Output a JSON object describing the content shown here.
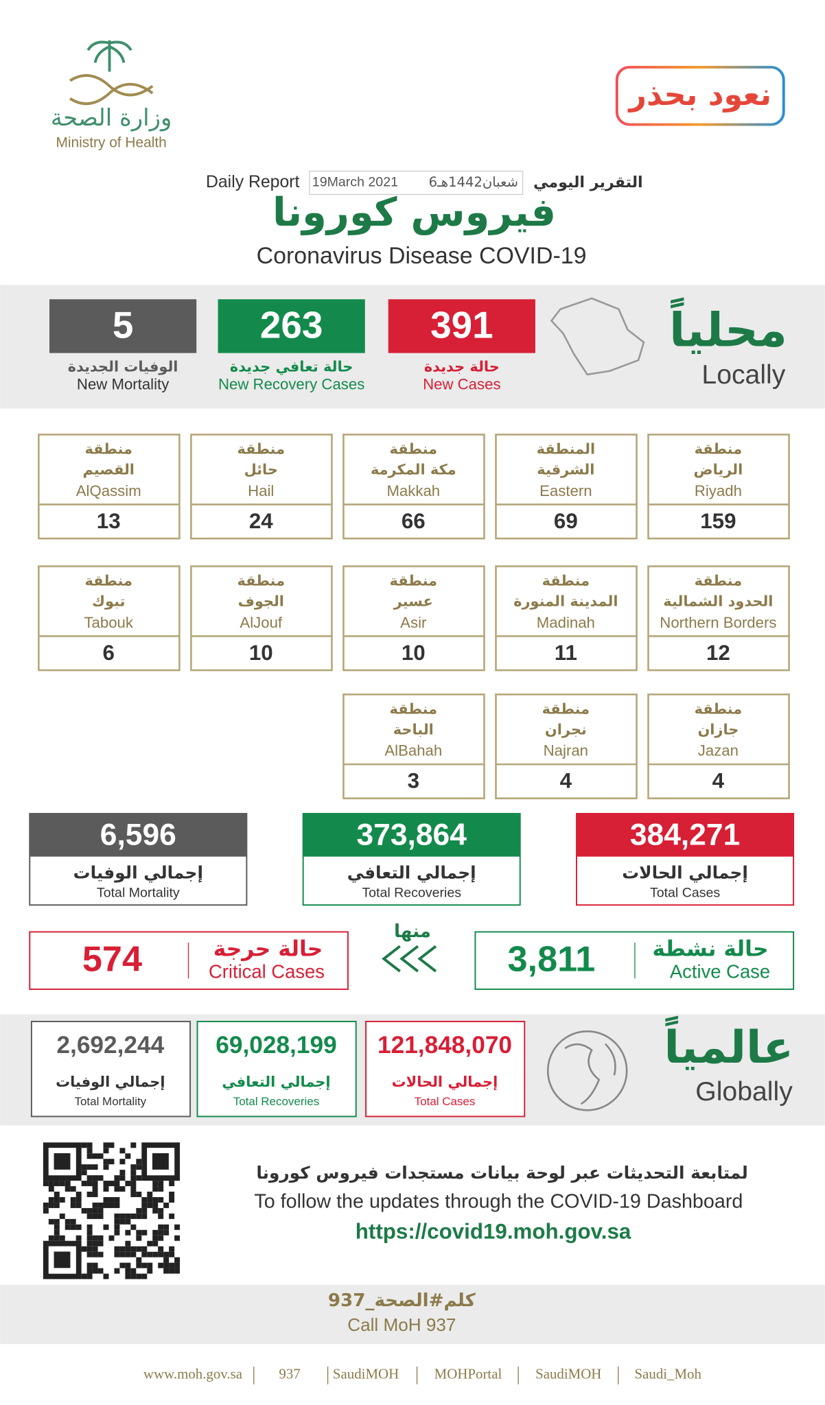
{
  "header": {
    "ministry_ar": "وزارة الصحة",
    "ministry_en": "Ministry of Health",
    "campaign": "نعود بحذر",
    "report_ar": "التقرير اليومي",
    "report_en": "Daily Report",
    "date_hijri": "6شعبان1442هـ",
    "date_gregorian": "19March 2021",
    "title_ar": "فيروس كورونا",
    "title_en": "Coronavirus Disease COVID-19"
  },
  "local": {
    "label_ar": "محلياً",
    "label_en": "Locally",
    "stats": [
      {
        "value": "391",
        "ar": "حالة جديدة",
        "en": "New Cases",
        "color": "#d71f35"
      },
      {
        "value": "263",
        "ar": "حالة تعافي جديدة",
        "en": "New Recovery Cases",
        "color": "#138a4c"
      },
      {
        "value": "5",
        "ar": "الوفيات الجديدة",
        "en": "New Mortality",
        "color": "#5b5b5b"
      }
    ]
  },
  "regions": [
    {
      "prefix": "منطقة",
      "ar": "الرياض",
      "en": "Riyadh",
      "value": "159"
    },
    {
      "prefix": "المنطقة",
      "ar": "الشرقية",
      "en": "Eastern",
      "value": "69"
    },
    {
      "prefix": "منطقة",
      "ar": "مكة المكرمة",
      "en": "Makkah",
      "value": "66"
    },
    {
      "prefix": "منطقة",
      "ar": "حائل",
      "en": "Hail",
      "value": "24"
    },
    {
      "prefix": "منطقة",
      "ar": "القصيم",
      "en": "AlQassim",
      "value": "13"
    },
    {
      "prefix": "منطقة",
      "ar": "الحدود الشمالية",
      "en": "Northern Borders",
      "value": "12"
    },
    {
      "prefix": "منطقة",
      "ar": "المدينة المنورة",
      "en": "Madinah",
      "value": "11"
    },
    {
      "prefix": "منطقة",
      "ar": "عسير",
      "en": "Asir",
      "value": "10"
    },
    {
      "prefix": "منطقة",
      "ar": "الجوف",
      "en": "AlJouf",
      "value": "10"
    },
    {
      "prefix": "منطقة",
      "ar": "تبوك",
      "en": "Tabouk",
      "value": "6"
    },
    {
      "prefix": "منطقة",
      "ar": "جازان",
      "en": "Jazan",
      "value": "4"
    },
    {
      "prefix": "منطقة",
      "ar": "نجران",
      "en": "Najran",
      "value": "4"
    },
    {
      "prefix": "منطقة",
      "ar": "الباحة",
      "en": "AlBahah",
      "value": "3"
    }
  ],
  "totals": [
    {
      "value": "384,271",
      "ar": "إجمالي الحالات",
      "en": "Total Cases",
      "color": "#d71f35"
    },
    {
      "value": "373,864",
      "ar": "إجمالي التعافي",
      "en": "Total Recoveries",
      "color": "#138a4c"
    },
    {
      "value": "6,596",
      "ar": "إجمالي الوفيات",
      "en": "Total Mortality",
      "color": "#5b5b5b"
    }
  ],
  "active": {
    "ar": "حالة نشطة",
    "en": "Active Case",
    "value": "3,811",
    "color": "#138a4c"
  },
  "of_which": "منها",
  "critical": {
    "ar": "حالة حرجة",
    "en": "Critical Cases",
    "value": "574",
    "color": "#d71f35"
  },
  "global": {
    "label_ar": "عالمياً",
    "label_en": "Globally",
    "stats": [
      {
        "value": "121,848,070",
        "ar": "إجمالي الحالات",
        "en": "Total Cases",
        "color": "#d71f35"
      },
      {
        "value": "69,028,199",
        "ar": "إجمالي التعافي",
        "en": "Total Recoveries",
        "color": "#138a4c"
      },
      {
        "value": "2,692,244",
        "ar": "إجمالي الوفيات",
        "en": "Total Mortality",
        "color": "#5b5b5b"
      }
    ]
  },
  "footer": {
    "follow_ar": "لمتابعة التحديثات عبر لوحة بيانات مستجدات فيروس كورونا",
    "follow_en": "To follow the updates through the COVID-19 Dashboard",
    "url": "https://covid19.moh.gov.sa",
    "call_ar": "كلم#الصحة_937",
    "call_en": "Call MoH 937",
    "links": [
      "www.moh.gov.sa",
      "937",
      "SaudiMOH",
      "MOHPortal",
      "SaudiMOH",
      "Saudi_Moh"
    ]
  }
}
